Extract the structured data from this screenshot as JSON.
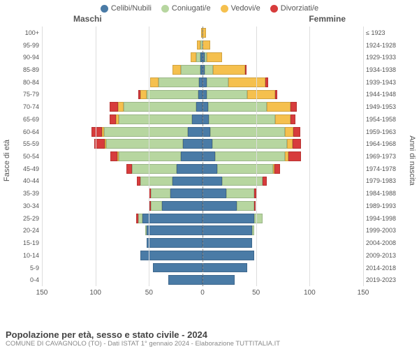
{
  "chart": {
    "type": "population-pyramid",
    "legend": [
      {
        "key": "single",
        "label": "Celibi/Nubili",
        "color": "#4a7ba6"
      },
      {
        "key": "married",
        "label": "Coniugati/e",
        "color": "#b7d6a0"
      },
      {
        "key": "widowed",
        "label": "Vedovi/e",
        "color": "#f5c04e"
      },
      {
        "key": "divorced",
        "label": "Divorziati/e",
        "color": "#d73c3c"
      }
    ],
    "gender_m": "Maschi",
    "gender_f": "Femmine",
    "axis_left_label": "Fasce di età",
    "axis_right_label": "Anni di nascita",
    "xmax": 150,
    "xticks": [
      150,
      100,
      50,
      0,
      50,
      100,
      150
    ],
    "colors": {
      "grid": "#dddddd",
      "center": "#888888",
      "bg": "#ffffff"
    },
    "rows": [
      {
        "age": "100+",
        "year": "≤ 1923",
        "m": {
          "single": 0,
          "married": 0,
          "widowed": 1,
          "divorced": 0
        },
        "f": {
          "single": 0,
          "married": 0,
          "widowed": 3,
          "divorced": 0
        }
      },
      {
        "age": "95-99",
        "year": "1924-1928",
        "m": {
          "single": 0,
          "married": 2,
          "widowed": 3,
          "divorced": 0
        },
        "f": {
          "single": 0,
          "married": 0,
          "widowed": 7,
          "divorced": 0
        }
      },
      {
        "age": "90-94",
        "year": "1929-1933",
        "m": {
          "single": 2,
          "married": 4,
          "widowed": 5,
          "divorced": 0
        },
        "f": {
          "single": 2,
          "married": 2,
          "widowed": 14,
          "divorced": 0
        }
      },
      {
        "age": "85-89",
        "year": "1934-1938",
        "m": {
          "single": 2,
          "married": 18,
          "widowed": 8,
          "divorced": 0
        },
        "f": {
          "single": 2,
          "married": 8,
          "widowed": 30,
          "divorced": 1
        }
      },
      {
        "age": "80-84",
        "year": "1939-1943",
        "m": {
          "single": 3,
          "married": 38,
          "widowed": 8,
          "divorced": 0
        },
        "f": {
          "single": 4,
          "married": 20,
          "widowed": 35,
          "divorced": 2
        }
      },
      {
        "age": "75-79",
        "year": "1944-1948",
        "m": {
          "single": 4,
          "married": 48,
          "widowed": 6,
          "divorced": 2
        },
        "f": {
          "single": 4,
          "married": 38,
          "widowed": 26,
          "divorced": 2
        }
      },
      {
        "age": "70-74",
        "year": "1949-1953",
        "m": {
          "single": 6,
          "married": 68,
          "widowed": 5,
          "divorced": 8
        },
        "f": {
          "single": 5,
          "married": 55,
          "widowed": 22,
          "divorced": 6
        }
      },
      {
        "age": "65-69",
        "year": "1954-1958",
        "m": {
          "single": 10,
          "married": 68,
          "widowed": 3,
          "divorced": 6
        },
        "f": {
          "single": 6,
          "married": 62,
          "widowed": 14,
          "divorced": 5
        }
      },
      {
        "age": "60-64",
        "year": "1959-1963",
        "m": {
          "single": 14,
          "married": 78,
          "widowed": 2,
          "divorced": 10
        },
        "f": {
          "single": 7,
          "married": 70,
          "widowed": 8,
          "divorced": 6
        }
      },
      {
        "age": "55-59",
        "year": "1964-1968",
        "m": {
          "single": 18,
          "married": 72,
          "widowed": 1,
          "divorced": 10
        },
        "f": {
          "single": 9,
          "married": 70,
          "widowed": 5,
          "divorced": 8
        }
      },
      {
        "age": "50-54",
        "year": "1969-1973",
        "m": {
          "single": 20,
          "married": 58,
          "widowed": 1,
          "divorced": 7
        },
        "f": {
          "single": 12,
          "married": 65,
          "widowed": 3,
          "divorced": 12
        }
      },
      {
        "age": "45-49",
        "year": "1974-1978",
        "m": {
          "single": 24,
          "married": 42,
          "widowed": 0,
          "divorced": 5
        },
        "f": {
          "single": 14,
          "married": 52,
          "widowed": 1,
          "divorced": 5
        }
      },
      {
        "age": "40-44",
        "year": "1979-1983",
        "m": {
          "single": 28,
          "married": 30,
          "widowed": 0,
          "divorced": 3
        },
        "f": {
          "single": 18,
          "married": 38,
          "widowed": 0,
          "divorced": 4
        }
      },
      {
        "age": "35-39",
        "year": "1984-1988",
        "m": {
          "single": 30,
          "married": 18,
          "widowed": 0,
          "divorced": 2
        },
        "f": {
          "single": 22,
          "married": 26,
          "widowed": 0,
          "divorced": 2
        }
      },
      {
        "age": "30-34",
        "year": "1989-1993",
        "m": {
          "single": 38,
          "married": 10,
          "widowed": 0,
          "divorced": 1
        },
        "f": {
          "single": 32,
          "married": 16,
          "widowed": 0,
          "divorced": 1
        }
      },
      {
        "age": "25-29",
        "year": "1994-1998",
        "m": {
          "single": 56,
          "married": 4,
          "widowed": 0,
          "divorced": 2
        },
        "f": {
          "single": 48,
          "married": 8,
          "widowed": 0,
          "divorced": 0
        }
      },
      {
        "age": "20-24",
        "year": "1999-2003",
        "m": {
          "single": 52,
          "married": 1,
          "widowed": 0,
          "divorced": 0
        },
        "f": {
          "single": 46,
          "married": 2,
          "widowed": 0,
          "divorced": 0
        }
      },
      {
        "age": "15-19",
        "year": "2004-2008",
        "m": {
          "single": 52,
          "married": 0,
          "widowed": 0,
          "divorced": 0
        },
        "f": {
          "single": 46,
          "married": 0,
          "widowed": 0,
          "divorced": 0
        }
      },
      {
        "age": "10-14",
        "year": "2009-2013",
        "m": {
          "single": 58,
          "married": 0,
          "widowed": 0,
          "divorced": 0
        },
        "f": {
          "single": 48,
          "married": 0,
          "widowed": 0,
          "divorced": 0
        }
      },
      {
        "age": "5-9",
        "year": "2014-2018",
        "m": {
          "single": 46,
          "married": 0,
          "widowed": 0,
          "divorced": 0
        },
        "f": {
          "single": 42,
          "married": 0,
          "widowed": 0,
          "divorced": 0
        }
      },
      {
        "age": "0-4",
        "year": "2019-2023",
        "m": {
          "single": 32,
          "married": 0,
          "widowed": 0,
          "divorced": 0
        },
        "f": {
          "single": 30,
          "married": 0,
          "widowed": 0,
          "divorced": 0
        }
      }
    ]
  },
  "footer": {
    "title": "Popolazione per età, sesso e stato civile - 2024",
    "subtitle": "COMUNE DI CAVAGNOLO (TO) - Dati ISTAT 1° gennaio 2024 - Elaborazione TUTTITALIA.IT"
  }
}
